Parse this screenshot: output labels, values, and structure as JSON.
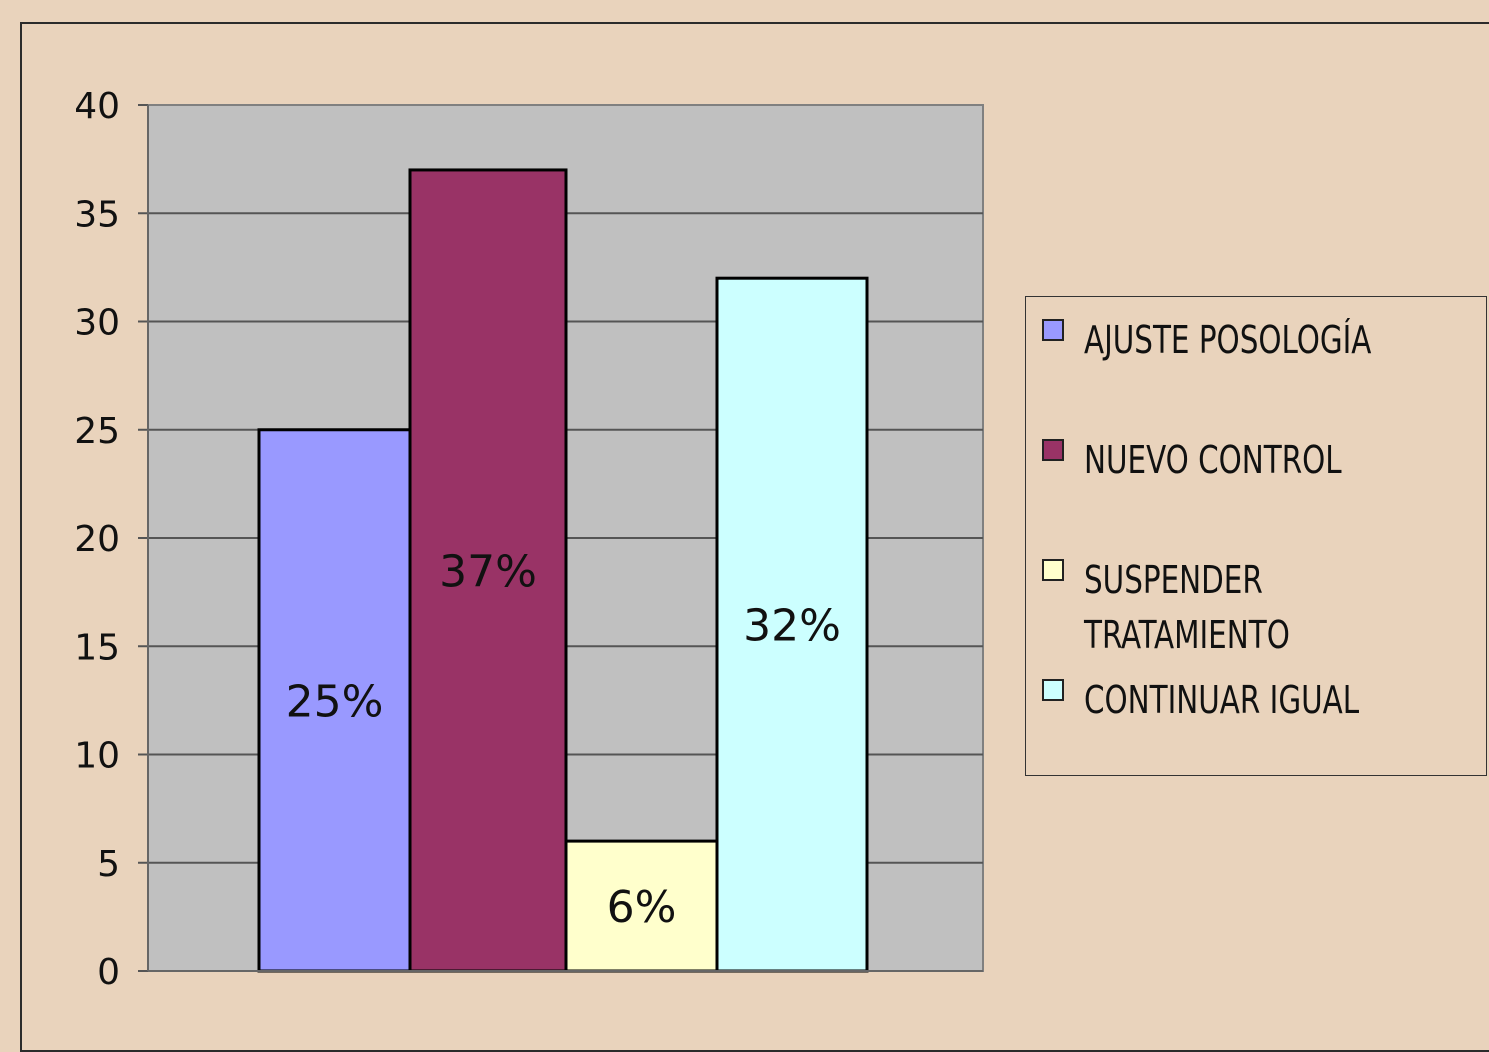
{
  "chart_data": {
    "type": "bar",
    "categories": [
      "AJUSTE POSOLOGÍA",
      "NUEVO CONTROL",
      "SUSPENDER TRATAMIENTO",
      "CONTINUAR IGUAL"
    ],
    "values": [
      25,
      37,
      6,
      32
    ],
    "data_labels": [
      "25%",
      "37%",
      "6%",
      "32%"
    ],
    "ylim": [
      0,
      40
    ],
    "yticks": [
      "0",
      "5",
      "10",
      "15",
      "20",
      "25",
      "30",
      "35",
      "40"
    ],
    "grid": true,
    "legend_position": "right",
    "colors": [
      "#9999FF",
      "#993366",
      "#FFFFCC",
      "#CCFFFF"
    ],
    "plot_background": "#C0C0C0"
  },
  "legend": {
    "items": [
      {
        "label": "AJUSTE POSOLOGÍA",
        "color": "#9999FF"
      },
      {
        "label": "NUEVO CONTROL",
        "color": "#993366"
      },
      {
        "label": "SUSPENDER\nTRATAMIENTO",
        "color": "#FFFFCC"
      },
      {
        "label": "CONTINUAR IGUAL",
        "color": "#CCFFFF"
      }
    ]
  }
}
